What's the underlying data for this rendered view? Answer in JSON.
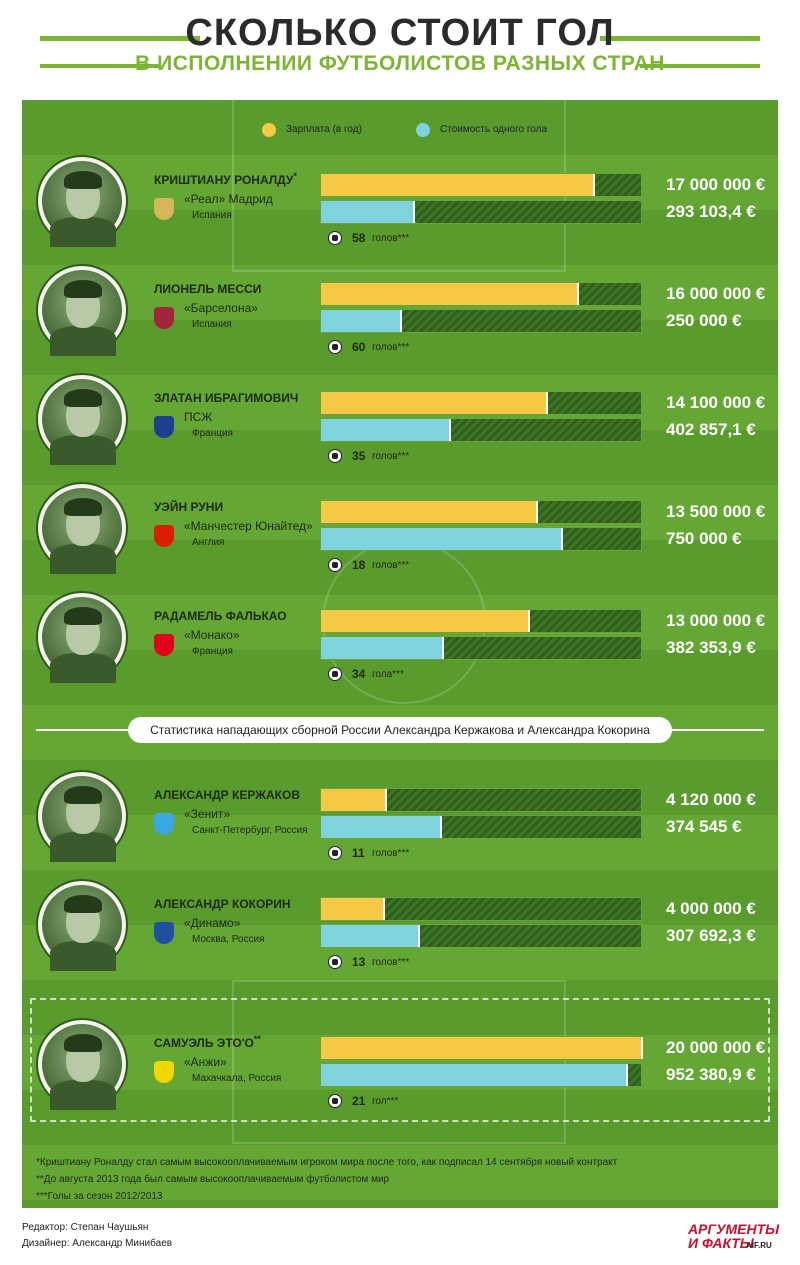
{
  "header": {
    "title": "СКОЛЬКО СТОИТ ГОЛ",
    "subtitle": "В ИСПОЛНЕНИИ ФУТБОЛИСТОВ РАЗНЫХ СТРАН"
  },
  "legend": {
    "salary": "Зарплата (в год)",
    "goal_cost": "Стоимость одного гола"
  },
  "colors": {
    "salary": "#f6c945",
    "goal_cost": "#7ed3dc",
    "field": "#5a9b2d"
  },
  "divider_text": "Статистика нападающих сборной России Александра Кержакова и Александра Кокорина",
  "chart_data": {
    "type": "bar",
    "orientation": "horizontal",
    "scale_max": 20000000,
    "series": [
      {
        "name": "Зарплата (в год)",
        "values": [
          17000000,
          16000000,
          14100000,
          13500000,
          13000000,
          4120000,
          4000000,
          20000000
        ]
      },
      {
        "name": "Стоимость одного гола",
        "values": [
          293103.4,
          250000,
          402857.1,
          750000,
          382353.9,
          374545,
          307692.3,
          952380.9
        ]
      }
    ],
    "goal_cost_scale_max": 1000000
  },
  "players": [
    {
      "name": "КРИШТИАНУ РОНАЛДУ",
      "mark": "*",
      "club": "«Реал» Мадрид",
      "country": "Испания",
      "salary": 17000000,
      "salary_label": "17 000 000 €",
      "goal_cost": 293103.4,
      "goal_cost_label": "293 103,4 €",
      "goals": "58",
      "goals_word": "голов***",
      "crest": "#d7b65a"
    },
    {
      "name": "ЛИОНЕЛЬ МЕССИ",
      "mark": "",
      "club": "«Барселона»",
      "country": "Испания",
      "salary": 16000000,
      "salary_label": "16 000 000 €",
      "goal_cost": 250000,
      "goal_cost_label": "250 000 €",
      "goals": "60",
      "goals_word": "голов***",
      "crest": "#a3243b"
    },
    {
      "name": "ЗЛАТАН ИБРАГИМОВИЧ",
      "mark": "",
      "club": "ПСЖ",
      "country": "Франция",
      "salary": 14100000,
      "salary_label": "14 100 000 €",
      "goal_cost": 402857.1,
      "goal_cost_label": "402 857,1 €",
      "goals": "35",
      "goals_word": "голов***",
      "crest": "#1d3f8f"
    },
    {
      "name": "УЭЙН РУНИ",
      "mark": "",
      "club": "«Манчестер Юнайтед»",
      "country": "Англия",
      "salary": 13500000,
      "salary_label": "13 500 000 €",
      "goal_cost": 750000,
      "goal_cost_label": "750 000 €",
      "goals": "18",
      "goals_word": "голов***",
      "crest": "#d81e05"
    },
    {
      "name": "РАДАМЕЛЬ ФАЛЬКАО",
      "mark": "",
      "club": "«Монако»",
      "country": "Франция",
      "salary": 13000000,
      "salary_label": "13 000 000 €",
      "goal_cost": 382353.9,
      "goal_cost_label": "382 353,9 €",
      "goals": "34",
      "goals_word": "гола***",
      "crest": "#e2001a"
    },
    {
      "name": "АЛЕКСАНДР КЕРЖАКОВ",
      "mark": "",
      "club": "«Зенит»",
      "country": "Санкт-Петербург, Россия",
      "salary": 4120000,
      "salary_label": "4 120 000 €",
      "goal_cost": 374545,
      "goal_cost_label": "374 545 €",
      "goals": "11",
      "goals_word": "голов***",
      "crest": "#3aa8e0"
    },
    {
      "name": "АЛЕКСАНДР КОКОРИН",
      "mark": "",
      "club": "«Динамо»",
      "country": "Москва, Россия",
      "salary": 4000000,
      "salary_label": "4 000 000 €",
      "goal_cost": 307692.3,
      "goal_cost_label": "307 692,3 €",
      "goals": "13",
      "goals_word": "голов***",
      "crest": "#1f4fa0"
    },
    {
      "name": "САМУЭЛЬ ЭТО'О",
      "mark": "**",
      "club": "«Анжи»",
      "country": "Махачкала, Россия",
      "salary": 20000000,
      "salary_label": "20 000 000 €",
      "goal_cost": 952380.9,
      "goal_cost_label": "952 380,9 €",
      "goals": "21",
      "goals_word": "гол***",
      "crest": "#f2d600"
    }
  ],
  "footnotes": [
    "*Криштиану Роналду стал самым высокооплачиваемым игроком мира после того, как подписал 14 сентября новый контракт",
    "**До августа 2013 года был самым высокооплачиваемым футболистом мир",
    "***Голы за сезон 2012/2013"
  ],
  "credits": {
    "editor": "Редактор: Степан Чаушьян",
    "designer": "Дизайнер: Александр Минибаев"
  },
  "logo": {
    "line1": "АРГУМЕНТЫ",
    "line2": "И ФАКТЫ",
    "site": "AIF.RU"
  }
}
